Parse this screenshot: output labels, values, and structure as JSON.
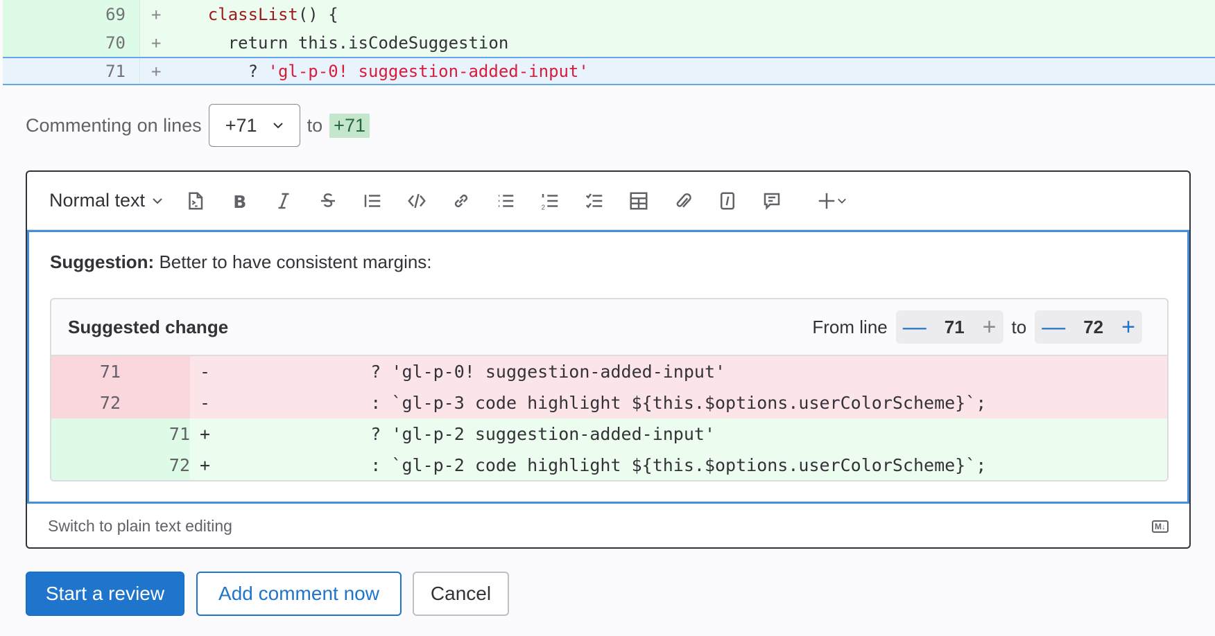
{
  "diff": [
    {
      "line": "69",
      "sign": "+",
      "indent": "    ",
      "parts": [
        {
          "t": "classList",
          "c": "kw"
        },
        {
          "t": "() {",
          "c": ""
        }
      ]
    },
    {
      "line": "70",
      "sign": "+",
      "indent": "      ",
      "parts": [
        {
          "t": "return this.isCodeSuggestion",
          "c": ""
        }
      ]
    },
    {
      "line": "71",
      "sign": "+",
      "indent": "        ",
      "parts": [
        {
          "t": "? ",
          "c": ""
        },
        {
          "t": "'gl-p-0! suggestion-added-input'",
          "c": "str"
        }
      ]
    }
  ],
  "commenting": {
    "label": "Commenting on lines",
    "start": "+71",
    "to": "to",
    "end": "+71"
  },
  "toolbar": {
    "text_style": "Normal text",
    "icons": [
      "insert-code-icon",
      "bold-icon",
      "italic-icon",
      "strikethrough-icon",
      "blockquote-icon",
      "code-icon",
      "link-icon",
      "bullet-list-icon",
      "numbered-list-icon",
      "task-list-icon",
      "table-icon",
      "attach-icon",
      "quick-action-icon",
      "comment-icon",
      "more-plus-icon"
    ]
  },
  "editor": {
    "suggestion_bold": "Suggestion:",
    "suggestion_text": " Better to have consistent margins:",
    "suggested_change": {
      "title": "Suggested change",
      "from_label": "From line",
      "from": "71",
      "to_label": "to",
      "to": "72",
      "rows": [
        {
          "type": "del",
          "old": "71",
          "new": "",
          "sign": "-",
          "code": "      ? 'gl-p-0! suggestion-added-input'"
        },
        {
          "type": "del",
          "old": "72",
          "new": "",
          "sign": "-",
          "code": "      : `gl-p-3 code highlight ${this.$options.userColorScheme}`;"
        },
        {
          "type": "add",
          "old": "",
          "new": "71",
          "sign": "+",
          "code": "      ? 'gl-p-2 suggestion-added-input'"
        },
        {
          "type": "add",
          "old": "",
          "new": "72",
          "sign": "+",
          "code": "      : `gl-p-2 code highlight ${this.$options.userColorScheme}`;"
        }
      ]
    },
    "switch_label": "Switch to plain text editing",
    "markdown_badge": "M↓"
  },
  "buttons": {
    "start_review": "Start a review",
    "add_comment": "Add comment now",
    "cancel": "Cancel"
  },
  "colors": {
    "primary": "#1f75cb",
    "added_bg": "#ecfdf0",
    "removed_bg": "#fbe5e8",
    "focus": "#428fdc"
  }
}
